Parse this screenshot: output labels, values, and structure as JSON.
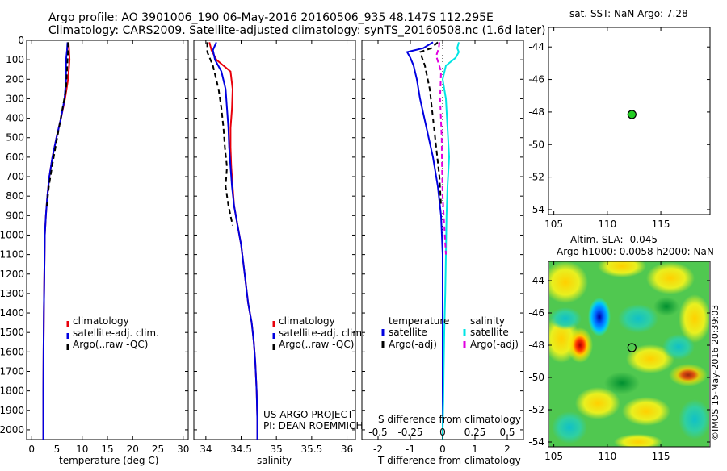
{
  "title_line1": "Argo profile: AO 3901006_190 06-May-2016 20160506_935 48.147S 112.295E",
  "title_line2": "Climatology: CARS2009. Satellite-adjusted climatology: synTS_20160508.nc (1.6d later)",
  "legend_temp": [
    "climatology",
    "satellite-adj. clim.",
    "Argo(..raw -QC)"
  ],
  "legend_sal": [
    "climatology",
    "satellite-adj. clim.",
    "Argo(..raw -QC)"
  ],
  "legend_diff": {
    "temp_header": "temperature",
    "sal_header": "salinity",
    "temp_sat": "satellite",
    "temp_argo": "Argo(-adj)",
    "sal_sat": "satellite",
    "sal_argo": "Argo(-adj)"
  },
  "credit_line1": "US ARGO PROJECT",
  "credit_line2": "PI: DEAN ROEMMICH",
  "sst_title": "sat. SST: NaN Argo: 7.28",
  "sla_title1": "Altim. SLA: -0.045",
  "sla_title2": "Argo h1000: 0.0058 h2000: NaN",
  "timestamp": "©IMOS 15-May-2016 20:39:03",
  "colors": {
    "clim": "#e8000b",
    "sat": "#0000e0",
    "argo": "#000000",
    "sat_sal": "#00e5e5",
    "argo_sal": "#e000e0",
    "dot": "#22cc22"
  },
  "chart_data": [
    {
      "type": "line",
      "xlabel": "temperature (deg C)",
      "xlim": [
        -1,
        31
      ],
      "ylim": [
        2050,
        0
      ],
      "xticks": [
        0,
        5,
        10,
        15,
        20,
        25,
        30
      ],
      "yticks": [
        0,
        100,
        200,
        300,
        400,
        500,
        600,
        700,
        800,
        900,
        1000,
        1100,
        1200,
        1300,
        1400,
        1500,
        1600,
        1700,
        1800,
        1900,
        2000
      ],
      "series": [
        {
          "name": "climatology",
          "color": "#e8000b",
          "x": [
            7.3,
            7.4,
            7.5,
            7.2,
            6.6,
            5.8,
            4.9,
            4.1,
            3.5,
            3.1,
            2.8,
            2.6,
            2.5,
            2.4,
            2.35,
            2.3,
            2.3
          ],
          "y": [
            10,
            50,
            100,
            200,
            300,
            400,
            500,
            600,
            700,
            800,
            900,
            1000,
            1200,
            1400,
            1600,
            1800,
            2050
          ]
        },
        {
          "name": "satellite-adj. clim.",
          "color": "#0000e0",
          "x": [
            7.1,
            7.0,
            6.8,
            6.8,
            6.5,
            5.8,
            4.9,
            4.1,
            3.5,
            3.1,
            2.8,
            2.6,
            2.5,
            2.4,
            2.35,
            2.3,
            2.3
          ],
          "y": [
            10,
            50,
            100,
            200,
            300,
            400,
            500,
            600,
            700,
            800,
            900,
            1000,
            1200,
            1400,
            1600,
            1800,
            2050
          ]
        },
        {
          "name": "Argo(..raw -QC)",
          "color": "#000000",
          "dash": true,
          "x": [
            7.2,
            7.2,
            7.0,
            6.8,
            6.1,
            5.4,
            4.7,
            4.0,
            3.4,
            3.0
          ],
          "y": [
            10,
            50,
            150,
            250,
            350,
            450,
            550,
            650,
            750,
            850
          ]
        }
      ]
    },
    {
      "type": "line",
      "xlabel": "salinity",
      "xlim": [
        33.83,
        36.12
      ],
      "ylim": [
        2050,
        0
      ],
      "xticks": [
        34,
        34.5,
        35,
        35.5,
        36
      ],
      "series": [
        {
          "name": "climatology",
          "color": "#e8000b",
          "x": [
            34.05,
            34.08,
            34.15,
            34.35,
            34.38,
            34.37,
            34.35,
            34.35,
            34.36,
            34.38,
            34.4,
            34.45,
            34.5,
            34.55,
            34.6,
            34.65,
            34.68,
            34.7,
            34.72,
            34.73,
            34.73
          ],
          "y": [
            10,
            50,
            100,
            160,
            250,
            350,
            450,
            550,
            650,
            750,
            850,
            950,
            1050,
            1200,
            1350,
            1450,
            1550,
            1650,
            1800,
            1950,
            2050
          ]
        },
        {
          "name": "satellite-adj. clim.",
          "color": "#0000e0",
          "x": [
            34.15,
            34.1,
            34.13,
            34.22,
            34.28,
            34.3,
            34.32,
            34.33,
            34.35,
            34.37,
            34.4,
            34.45,
            34.5,
            34.55,
            34.6,
            34.65,
            34.68,
            34.7,
            34.72,
            34.73,
            34.73
          ],
          "y": [
            10,
            50,
            100,
            160,
            250,
            350,
            450,
            550,
            650,
            750,
            850,
            950,
            1050,
            1200,
            1350,
            1450,
            1550,
            1650,
            1800,
            1950,
            2050
          ]
        },
        {
          "name": "Argo(..raw -QC)",
          "color": "#000000",
          "dash": true,
          "x": [
            34.02,
            34.02,
            34.1,
            34.18,
            34.22,
            34.25,
            34.27,
            34.3,
            34.28,
            34.32,
            34.38
          ],
          "y": [
            10,
            60,
            130,
            250,
            350,
            450,
            550,
            650,
            750,
            850,
            950
          ]
        }
      ]
    },
    {
      "type": "line",
      "xlabel": "T difference from climatology",
      "xlabel2": "S difference from climatology",
      "xlim": [
        -2.5,
        2.5
      ],
      "ylim": [
        2050,
        0
      ],
      "xticks": [
        -2,
        -1,
        0,
        1,
        2
      ],
      "xticks_top": [
        -0.5,
        -0.25,
        0,
        0.25,
        0.5
      ],
      "series": [
        {
          "name": "temperature satellite",
          "color": "#0000e0",
          "x": [
            -0.3,
            -0.6,
            -1.1,
            -1.0,
            -0.9,
            -0.8,
            -0.7,
            -0.5,
            -0.3,
            -0.15,
            -0.05,
            0,
            0,
            0,
            0,
            0,
            0,
            0
          ],
          "y": [
            10,
            40,
            60,
            90,
            130,
            200,
            300,
            450,
            600,
            750,
            900,
            1100,
            1300,
            1500,
            1700,
            1850,
            2050,
            2050
          ]
        },
        {
          "name": "temperature Argo(-adj)",
          "color": "#000000",
          "dash": true,
          "x": [
            -0.15,
            -0.35,
            -0.7,
            -0.55,
            -0.4,
            -0.3,
            -0.2,
            -0.1,
            -0.05
          ],
          "y": [
            10,
            40,
            60,
            130,
            250,
            400,
            550,
            700,
            850
          ]
        },
        {
          "name": "salinity satellite",
          "color": "#00e5e5",
          "x": [
            0.5,
            0.45,
            0.5,
            0.4,
            0.1,
            0,
            0.1,
            0.15,
            0.2,
            0.15,
            0.12,
            0.1,
            0.08,
            0.05,
            0.03,
            0.02,
            0,
            0
          ],
          "y": [
            10,
            40,
            60,
            90,
            130,
            200,
            300,
            450,
            600,
            750,
            900,
            1100,
            1300,
            1500,
            1700,
            1850,
            2000,
            2050
          ]
        },
        {
          "name": "salinity Argo(-adj)",
          "color": "#e000e0",
          "dash": true,
          "x": [
            -0.1,
            -0.12,
            -0.2,
            -0.05,
            -0.08,
            -0.03,
            -0.02,
            0,
            0.05,
            0.1
          ],
          "y": [
            10,
            40,
            80,
            160,
            300,
            500,
            650,
            800,
            950,
            1100
          ]
        }
      ]
    },
    {
      "type": "scatter",
      "title": "sat. SST: NaN Argo: 7.28",
      "xlim": [
        104.5,
        119.6
      ],
      "ylim": [
        -54.3,
        -42.8
      ],
      "xticks": [
        105,
        110,
        115
      ],
      "yticks": [
        -44,
        -46,
        -48,
        -50,
        -52,
        -54
      ],
      "points": [
        {
          "x": 112.3,
          "y": -48.15
        }
      ]
    },
    {
      "type": "heatmap",
      "title": "Altim. SLA: -0.045",
      "xlim": [
        104.5,
        119.6
      ],
      "ylim": [
        -54.3,
        -42.8
      ],
      "xticks": [
        105,
        110,
        115
      ],
      "yticks": [
        -44,
        -46,
        -48,
        -50,
        -52,
        -54
      ],
      "points": [
        {
          "x": 112.3,
          "y": -48.15
        }
      ]
    }
  ]
}
